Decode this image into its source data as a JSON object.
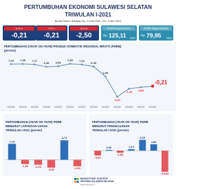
{
  "header": {
    "title": [
      "PERTUMBUHAN EKONOMI SULAWESI SELATAN",
      "TRIWULAN I-2021"
    ],
    "subtitle": "Berita Resmi Statistik No. 27/05/73/th. XIV, 5 Mei 2021"
  },
  "boxes": [
    {
      "label": "y-on-y",
      "value": "-0,21"
    },
    {
      "label": "c-to-c",
      "value": "-0,21"
    },
    {
      "label": "q-to-q",
      "value": "-2,50"
    },
    {
      "label": "PDRB harga berlaku",
      "prefix": "Rp",
      "value": "125,11",
      "unit": "triliun"
    },
    {
      "label": "PDRB harga konstan",
      "prefix": "Rp",
      "value": "79,95",
      "unit": "triliun"
    }
  ],
  "chart_data": [
    {
      "type": "line",
      "title": "PERTUMBUHAN (YEAR ON YEAR) PRODUK DOMESTIK REGIONAL BRUTO (PDRB)",
      "subtitle": "(persen)",
      "categories": [
        "Q1/2018",
        "Q2/2018",
        "Q3/2018",
        "Q4/2018",
        "Q1/2019",
        "Q2/2019",
        "Q3/2019",
        "Q4/2019",
        "Q1/2020",
        "Q2/2020",
        "Q3/2020",
        "Q4/2020",
        "Q1/2021"
      ],
      "values": [
        7.29,
        7.35,
        7.17,
        6.38,
        6.56,
        7.38,
        7.16,
        6.49,
        3.05,
        -3.87,
        -1.1,
        -0.62,
        -0.21
      ],
      "value_labels": [
        "7,29",
        "7,35",
        "7,17",
        "6,38",
        "6,56",
        "7,38",
        "7,16",
        "6,49",
        "3,05",
        "-3,87",
        "-1,10",
        "-0,62",
        "-0,21"
      ],
      "color": "#6a8fb5",
      "highlight_color": "#e0262b",
      "ylim": [
        -6,
        9
      ]
    },
    {
      "type": "bar",
      "title": [
        "PERTUMBUHAN (YEAR ON YEAR) PDRB",
        "MENURUT LAPANGAN USAHA",
        "TRIWULAN I-2021 (persen)"
      ],
      "values": [
        7.14,
        -1.92,
        -2.22,
        -3.51,
        8.73,
        -2.91
      ],
      "value_labels": [
        "7,14",
        "-1,92",
        "-2,22",
        "-3,51",
        "8,73",
        "-2,91"
      ],
      "color_positive": "#2e6fb8",
      "color_negative": "#e05a5f",
      "ylim": [
        -6,
        10
      ]
    },
    {
      "type": "bar",
      "title": [
        "PERTUMBUHAN (YEAR ON YEAR) PDRB",
        "MENURUT PENGELUARAN",
        "TRIWULAN I-2021 (persen)"
      ],
      "values": [
        -3.61,
        0.56,
        -1.56,
        1.1,
        8.19,
        4.86,
        -15.92
      ],
      "value_labels": [
        "-3,61",
        "0,56",
        "-1,56",
        "1,10",
        "8,19",
        "4,86",
        "-15,92"
      ],
      "color_positive": "#2e6fb8",
      "color_negative": "#e05a5f",
      "ylim": [
        -17,
        10
      ]
    }
  ],
  "footer": {
    "org": [
      "BADAN PUSAT STATISTIK",
      "PROVINSI SULAWESI SELATAN"
    ],
    "url": "sulsel.bps.go.id"
  }
}
